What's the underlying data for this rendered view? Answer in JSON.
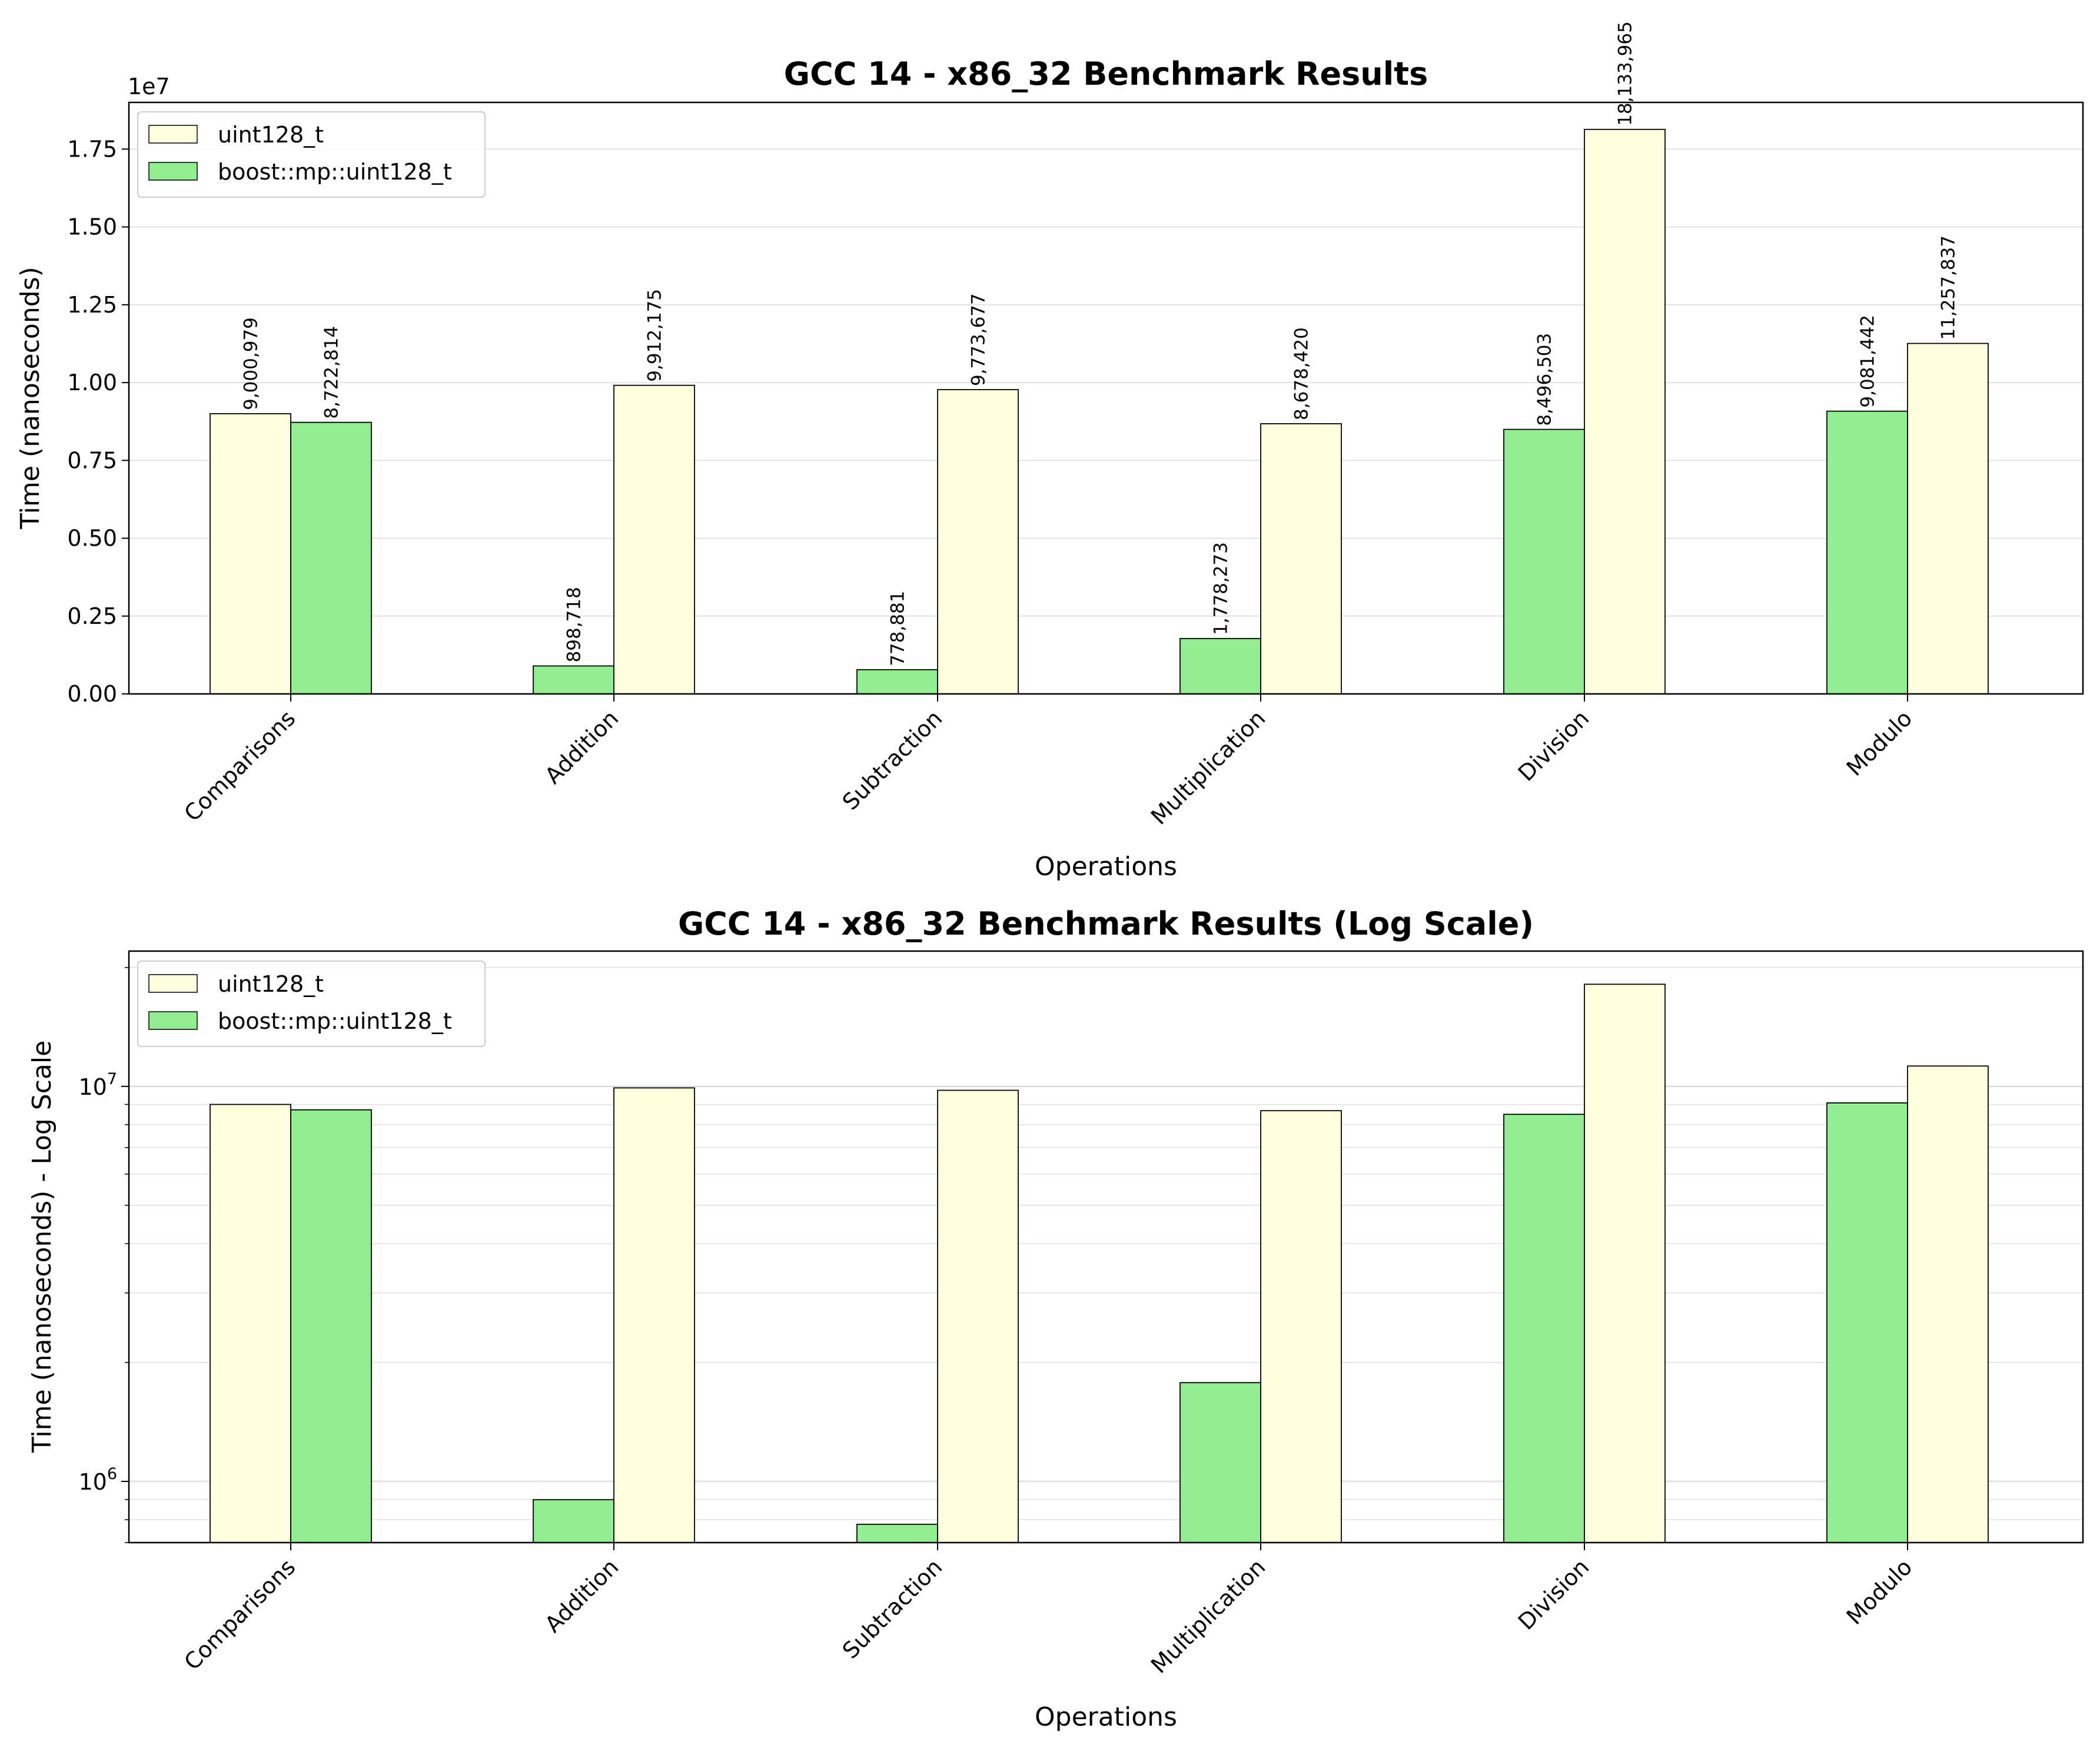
{
  "chart_data": [
    {
      "type": "bar",
      "title": "GCC 14 - x86_32 Benchmark Results",
      "xlabel": "Operations",
      "ylabel": "Time (nanoseconds)",
      "y_scale": "linear",
      "y_offset_text": "1e7",
      "ylim": [
        0,
        19000000
      ],
      "y_ticks": [
        0,
        2500000,
        5000000,
        7500000,
        10000000,
        12500000,
        15000000,
        17500000
      ],
      "y_tick_labels": [
        "0.00",
        "0.25",
        "0.50",
        "0.75",
        "1.00",
        "1.25",
        "1.50",
        "1.75"
      ],
      "grid": "horizontal",
      "legend_position": "top-left",
      "categories": [
        "Comparisons",
        "Addition",
        "Subtraction",
        "Multiplication",
        "Division",
        "Modulo"
      ],
      "series": [
        {
          "name": "uint128_t",
          "color": "#ffffe0",
          "values": [
            9000979,
            9912175,
            9773677,
            8678420,
            18133965,
            11257837
          ]
        },
        {
          "name": "boost::mp::uint128_t",
          "color": "#90ee90",
          "values": [
            8722814,
            898718,
            778881,
            1778273,
            8496503,
            9081442
          ]
        }
      ],
      "bar_order": [
        [
          "uint128_t",
          "boost::mp::uint128_t"
        ],
        [
          "boost::mp::uint128_t",
          "uint128_t"
        ],
        [
          "boost::mp::uint128_t",
          "uint128_t"
        ],
        [
          "boost::mp::uint128_t",
          "uint128_t"
        ],
        [
          "boost::mp::uint128_t",
          "uint128_t"
        ],
        [
          "boost::mp::uint128_t",
          "uint128_t"
        ]
      ],
      "data_labels": [
        [
          "9,000,979",
          "8,722,814"
        ],
        [
          "898,718",
          "9,912,175"
        ],
        [
          "778,881",
          "9,773,677"
        ],
        [
          "1,778,273",
          "8,678,420"
        ],
        [
          "8,496,503",
          "18,133,965"
        ],
        [
          "9,081,442",
          "11,257,837"
        ]
      ]
    },
    {
      "type": "bar",
      "title": "GCC 14 - x86_32 Benchmark Results (Log Scale)",
      "xlabel": "Operations",
      "ylabel": "Time (nanoseconds) - Log Scale",
      "y_scale": "log",
      "ylim": [
        700000,
        22000000
      ],
      "y_major_ticks": [
        1000000,
        10000000
      ],
      "y_major_tick_labels": [
        [
          "10",
          "6"
        ],
        [
          "10",
          "7"
        ]
      ],
      "y_minor_ticks": [
        700000,
        800000,
        900000,
        2000000,
        3000000,
        4000000,
        5000000,
        6000000,
        7000000,
        8000000,
        9000000,
        20000000
      ],
      "grid": "horizontal",
      "legend_position": "top-left",
      "categories": [
        "Comparisons",
        "Addition",
        "Subtraction",
        "Multiplication",
        "Division",
        "Modulo"
      ],
      "series": [
        {
          "name": "uint128_t",
          "color": "#ffffe0",
          "values": [
            9000979,
            9912175,
            9773677,
            8678420,
            18133965,
            11257837
          ]
        },
        {
          "name": "boost::mp::uint128_t",
          "color": "#90ee90",
          "values": [
            8722814,
            898718,
            778881,
            1778273,
            8496503,
            9081442
          ]
        }
      ],
      "bar_order": [
        [
          "uint128_t",
          "boost::mp::uint128_t"
        ],
        [
          "boost::mp::uint128_t",
          "uint128_t"
        ],
        [
          "boost::mp::uint128_t",
          "uint128_t"
        ],
        [
          "boost::mp::uint128_t",
          "uint128_t"
        ],
        [
          "boost::mp::uint128_t",
          "uint128_t"
        ],
        [
          "boost::mp::uint128_t",
          "uint128_t"
        ]
      ]
    }
  ]
}
